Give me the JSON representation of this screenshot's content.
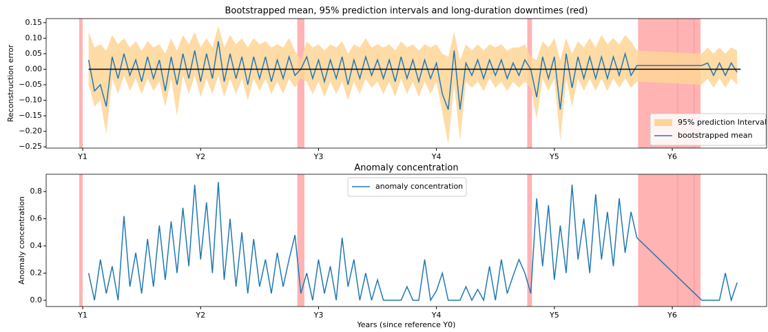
{
  "chart_data": [
    {
      "type": "line",
      "title": "Bootstrapped mean, 95% prediction intervals and long-duration downtimes (red)",
      "ylabel": "Reconstruction error",
      "xlim": [
        0.69,
        6.8
      ],
      "xticks": [
        {
          "value": 1,
          "label": "Y1"
        },
        {
          "value": 2,
          "label": "Y2"
        },
        {
          "value": 3,
          "label": "Y3"
        },
        {
          "value": 4,
          "label": "Y4"
        },
        {
          "value": 5,
          "label": "Y5"
        },
        {
          "value": 6,
          "label": "Y6"
        }
      ],
      "ylim": [
        -0.254,
        0.163
      ],
      "yticks": [
        {
          "value": -0.25,
          "label": "−0.25"
        },
        {
          "value": -0.2,
          "label": "−0.20"
        },
        {
          "value": -0.15,
          "label": "−0.15"
        },
        {
          "value": -0.1,
          "label": "−0.10"
        },
        {
          "value": -0.05,
          "label": "−0.05"
        },
        {
          "value": 0,
          "label": "0.00"
        },
        0.05,
        {
          "value": 0.1,
          "label": "0.10"
        },
        0.15
      ],
      "legend": "lower right",
      "downtime_color": "#ff9999",
      "downtimes": [
        [
          0.97,
          1.0
        ],
        [
          2.82,
          2.88
        ],
        [
          4.77,
          4.81
        ],
        [
          5.71,
          6.24
        ],
        [
          6.04,
          6.05
        ],
        [
          6.18,
          6.19
        ]
      ],
      "x": [
        1.05,
        1.1,
        1.15,
        1.2,
        1.25,
        1.3,
        1.35,
        1.4,
        1.45,
        1.5,
        1.55,
        1.6,
        1.65,
        1.7,
        1.75,
        1.8,
        1.85,
        1.9,
        1.95,
        2,
        2.05,
        2.1,
        2.15,
        2.2,
        2.25,
        2.3,
        2.35,
        2.4,
        2.45,
        2.5,
        2.55,
        2.6,
        2.65,
        2.7,
        2.75,
        2.8,
        2.85,
        2.9,
        2.95,
        3,
        3.05,
        3.1,
        3.15,
        3.2,
        3.25,
        3.3,
        3.35,
        3.4,
        3.45,
        3.5,
        3.55,
        3.6,
        3.65,
        3.7,
        3.75,
        3.8,
        3.85,
        3.9,
        3.95,
        4,
        4.05,
        4.1,
        4.15,
        4.2,
        4.25,
        4.3,
        4.35,
        4.4,
        4.45,
        4.5,
        4.55,
        4.6,
        4.65,
        4.7,
        4.75,
        4.8,
        4.85,
        4.9,
        4.95,
        5,
        5.05,
        5.1,
        5.15,
        5.2,
        5.25,
        5.3,
        5.35,
        5.4,
        5.45,
        5.5,
        5.55,
        5.6,
        5.65,
        5.7,
        6.25,
        6.3,
        6.35,
        6.4,
        6.45,
        6.5,
        6.55
      ],
      "series": [
        {
          "name": "95% prediction Interval",
          "color": "#ffd596",
          "lower": [
            -0.05,
            -0.12,
            -0.1,
            -0.21,
            -0.03,
            -0.08,
            -0.02,
            -0.07,
            -0.03,
            -0.08,
            -0.03,
            -0.07,
            -0.04,
            -0.12,
            -0.03,
            -0.15,
            -0.02,
            -0.08,
            -0.02,
            -0.09,
            -0.03,
            -0.08,
            -0.02,
            -0.09,
            -0.03,
            -0.08,
            -0.03,
            -0.1,
            -0.03,
            -0.07,
            -0.03,
            -0.08,
            -0.04,
            -0.08,
            -0.03,
            -0.06,
            -0.03,
            -0.04,
            -0.08,
            -0.04,
            -0.09,
            -0.04,
            -0.08,
            -0.04,
            -0.1,
            -0.04,
            -0.08,
            -0.03,
            -0.06,
            -0.04,
            -0.08,
            -0.04,
            -0.09,
            -0.03,
            -0.08,
            -0.04,
            -0.09,
            -0.04,
            -0.08,
            -0.04,
            -0.14,
            -0.24,
            -0.05,
            -0.23,
            -0.04,
            -0.06,
            -0.04,
            -0.07,
            -0.03,
            -0.06,
            -0.04,
            -0.07,
            -0.04,
            -0.06,
            -0.04,
            -0.06,
            -0.16,
            -0.03,
            -0.07,
            -0.03,
            -0.23,
            -0.03,
            -0.12,
            -0.03,
            -0.07,
            -0.03,
            -0.07,
            -0.03,
            -0.07,
            -0.03,
            -0.06,
            -0.03,
            -0.06,
            -0.04,
            -0.05,
            -0.03,
            -0.06,
            -0.03,
            -0.06,
            -0.03,
            -0.05
          ],
          "upper": [
            0.12,
            0.07,
            0.08,
            0.06,
            0.11,
            0.08,
            0.1,
            0.07,
            0.09,
            0.06,
            0.09,
            0.07,
            0.08,
            0.05,
            0.1,
            0.06,
            0.11,
            0.08,
            0.12,
            0.07,
            0.1,
            0.07,
            0.14,
            0.07,
            0.11,
            0.08,
            0.1,
            0.07,
            0.1,
            0.08,
            0.09,
            0.07,
            0.08,
            0.07,
            0.1,
            0.06,
            0.03,
            0.09,
            0.07,
            0.08,
            0.06,
            0.08,
            0.07,
            0.09,
            0.05,
            0.08,
            0.07,
            0.1,
            0.07,
            0.08,
            0.07,
            0.08,
            0.06,
            0.09,
            0.07,
            0.08,
            0.06,
            0.08,
            0.07,
            0.08,
            0.05,
            0.04,
            0.12,
            0.03,
            0.08,
            0.06,
            0.08,
            0.06,
            0.08,
            0.07,
            0.08,
            0.06,
            0.07,
            0.07,
            0.08,
            0.04,
            0.03,
            0.09,
            0.07,
            0.1,
            0.03,
            0.1,
            0.05,
            0.09,
            0.07,
            0.1,
            0.07,
            0.11,
            0.08,
            0.1,
            0.08,
            0.11,
            0.09,
            0.06,
            0.05,
            0.07,
            0.05,
            0.07,
            0.05,
            0.07,
            0.06
          ]
        },
        {
          "name": "bootstrapped mean",
          "color": "#1f77b4",
          "values": [
            0.03,
            -0.07,
            -0.05,
            -0.12,
            0.04,
            -0.03,
            0.05,
            -0.02,
            0.03,
            -0.04,
            0.04,
            -0.03,
            0.03,
            -0.07,
            0.04,
            -0.05,
            0.05,
            -0.03,
            0.06,
            -0.04,
            0.05,
            -0.03,
            0.09,
            -0.04,
            0.05,
            -0.03,
            0.04,
            -0.05,
            0.04,
            -0.03,
            0.04,
            -0.04,
            0.03,
            -0.03,
            0.04,
            -0.02,
            0.0,
            0.04,
            -0.03,
            0.03,
            -0.04,
            0.03,
            -0.03,
            0.04,
            -0.05,
            0.03,
            -0.03,
            0.04,
            -0.02,
            0.03,
            -0.03,
            0.03,
            -0.04,
            0.04,
            -0.03,
            0.03,
            -0.04,
            0.03,
            -0.03,
            0.02,
            -0.08,
            -0.13,
            0.06,
            -0.13,
            0.02,
            -0.02,
            0.03,
            -0.03,
            0.03,
            -0.02,
            0.03,
            -0.03,
            0.02,
            -0.02,
            0.03,
            0.0,
            -0.09,
            0.04,
            -0.03,
            0.04,
            -0.13,
            0.05,
            -0.06,
            0.04,
            -0.03,
            0.04,
            -0.03,
            0.04,
            -0.03,
            0.04,
            -0.02,
            0.05,
            -0.02,
            0.012,
            0.012,
            0.02,
            -0.02,
            0.02,
            -0.02,
            0.02,
            -0.01
          ]
        }
      ],
      "zero_line": {
        "x": [
          1.05,
          6.58
        ],
        "values": [
          0,
          0
        ],
        "color": "#000000"
      }
    },
    {
      "type": "line",
      "title": "Anomaly concentration",
      "ylabel": "Anomaly concentration",
      "xlabel": "Years (since reference Y0)",
      "xlim": [
        0.69,
        6.8
      ],
      "xticks": [
        {
          "value": 1,
          "label": "Y1"
        },
        {
          "value": 2,
          "label": "Y2"
        },
        {
          "value": 3,
          "label": "Y3"
        },
        {
          "value": 4,
          "label": "Y4"
        },
        {
          "value": 5,
          "label": "Y5"
        },
        {
          "value": 6,
          "label": "Y6"
        }
      ],
      "ylim": [
        -0.046,
        0.927
      ],
      "yticks": [
        {
          "value": 0,
          "label": "0.0"
        },
        0.2,
        0.4,
        0.6,
        0.8
      ],
      "legend": "upper center",
      "downtime_color": "#ff9999",
      "downtimes": [
        [
          0.97,
          1.0
        ],
        [
          2.82,
          2.88
        ],
        [
          4.77,
          4.81
        ],
        [
          5.71,
          6.24
        ],
        [
          6.04,
          6.05
        ],
        [
          6.18,
          6.19
        ]
      ],
      "x": [
        1.05,
        1.1,
        1.15,
        1.2,
        1.25,
        1.3,
        1.35,
        1.4,
        1.45,
        1.5,
        1.55,
        1.6,
        1.65,
        1.7,
        1.75,
        1.8,
        1.85,
        1.9,
        1.95,
        2,
        2.05,
        2.1,
        2.15,
        2.2,
        2.25,
        2.3,
        2.35,
        2.4,
        2.45,
        2.5,
        2.55,
        2.6,
        2.65,
        2.7,
        2.75,
        2.8,
        2.85,
        2.9,
        2.95,
        3,
        3.05,
        3.1,
        3.15,
        3.2,
        3.25,
        3.3,
        3.35,
        3.4,
        3.45,
        3.5,
        3.55,
        3.6,
        3.65,
        3.7,
        3.75,
        3.8,
        3.85,
        3.9,
        3.95,
        4,
        4.05,
        4.1,
        4.15,
        4.2,
        4.25,
        4.3,
        4.35,
        4.4,
        4.45,
        4.5,
        4.55,
        4.6,
        4.65,
        4.7,
        4.75,
        4.8,
        4.85,
        4.9,
        4.95,
        5,
        5.05,
        5.1,
        5.15,
        5.2,
        5.25,
        5.3,
        5.35,
        5.4,
        5.45,
        5.5,
        5.55,
        5.6,
        5.65,
        5.7,
        6.25,
        6.3,
        6.35,
        6.4,
        6.45,
        6.5,
        6.55
      ],
      "series": [
        {
          "name": "anomaly concentration",
          "color": "#1f77b4",
          "values": [
            0.2,
            0,
            0.3,
            0.05,
            0.25,
            0,
            0.62,
            0.1,
            0.35,
            0.05,
            0.45,
            0.1,
            0.55,
            0.15,
            0.58,
            0.2,
            0.68,
            0.25,
            0.85,
            0.3,
            0.72,
            0.2,
            0.87,
            0.15,
            0.6,
            0.1,
            0.5,
            0.05,
            0.45,
            0.1,
            0.3,
            0.05,
            0.35,
            0.1,
            0.3,
            0.48,
            0.05,
            0.2,
            0,
            0.3,
            0.05,
            0.25,
            0,
            0.46,
            0.1,
            0.3,
            0,
            0.2,
            0,
            0.15,
            0,
            0,
            0,
            0,
            0.1,
            0,
            0,
            0.3,
            0,
            0.07,
            0.2,
            0,
            0,
            0,
            0.1,
            0,
            0.08,
            0,
            0.25,
            0,
            0.3,
            0.05,
            0.18,
            0.3,
            0.2,
            0.05,
            0.75,
            0.25,
            0.7,
            0.15,
            0.55,
            0.2,
            0.85,
            0.3,
            0.6,
            0.2,
            0.78,
            0.3,
            0.65,
            0.25,
            0.75,
            0.35,
            0.65,
            0.46,
            0,
            0,
            0,
            0,
            0.2,
            0,
            0.13
          ]
        }
      ]
    }
  ]
}
